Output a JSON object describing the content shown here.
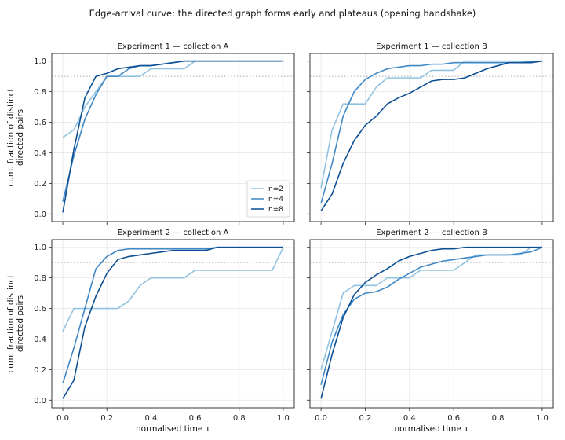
{
  "figure": {
    "title": "Edge-arrival curve: the directed graph forms early and plateaus (opening handshake)"
  },
  "chart_data": [
    {
      "type": "line",
      "title": "Experiment 1 — collection A",
      "xlabel": "",
      "ylabel": "cum. fraction of distinct\ndirected pairs",
      "xlim": [
        -0.05,
        1.05
      ],
      "ylim": [
        -0.05,
        1.05
      ],
      "xticks": [
        "0.0",
        "0.2",
        "0.4",
        "0.6",
        "0.8",
        "1.0"
      ],
      "yticks": [
        "0.0",
        "0.2",
        "0.4",
        "0.6",
        "0.8",
        "1.0"
      ],
      "reference_line": 0.9,
      "grid": true,
      "legend": "lower-right",
      "series": [
        {
          "name": "n=2",
          "color": "#90c2e0",
          "x": [
            0,
            0.05,
            0.1,
            0.15,
            0.2,
            0.25,
            0.3,
            0.35,
            0.4,
            0.45,
            0.5,
            0.55,
            0.6,
            0.65,
            1.0
          ],
          "y": [
            0.5,
            0.55,
            0.7,
            0.8,
            0.9,
            0.9,
            0.9,
            0.9,
            0.95,
            0.95,
            0.95,
            0.95,
            1.0,
            1.0,
            1.0
          ]
        },
        {
          "name": "n=4",
          "color": "#3f88c5",
          "x": [
            0,
            0.05,
            0.1,
            0.15,
            0.2,
            0.25,
            0.3,
            0.35,
            0.4,
            0.45,
            0.5,
            0.55,
            0.6,
            1.0
          ],
          "y": [
            0.08,
            0.38,
            0.62,
            0.78,
            0.9,
            0.9,
            0.95,
            0.97,
            0.97,
            0.98,
            0.99,
            1.0,
            1.0,
            1.0
          ]
        },
        {
          "name": "n=8",
          "color": "#0d4f94",
          "x": [
            0,
            0.05,
            0.1,
            0.15,
            0.2,
            0.25,
            0.3,
            0.35,
            0.4,
            0.45,
            0.5,
            0.55,
            0.6,
            1.0
          ],
          "y": [
            0.01,
            0.42,
            0.76,
            0.9,
            0.92,
            0.95,
            0.96,
            0.97,
            0.97,
            0.98,
            0.99,
            1.0,
            1.0,
            1.0
          ]
        }
      ]
    },
    {
      "type": "line",
      "title": "Experiment 1 — collection B",
      "xlabel": "",
      "ylabel": "",
      "xlim": [
        -0.05,
        1.05
      ],
      "ylim": [
        -0.05,
        1.05
      ],
      "xticks": [
        "0.0",
        "0.2",
        "0.4",
        "0.6",
        "0.8",
        "1.0"
      ],
      "yticks": [
        "0.0",
        "0.2",
        "0.4",
        "0.6",
        "0.8",
        "1.0"
      ],
      "reference_line": 0.9,
      "grid": true,
      "series": [
        {
          "name": "n=2",
          "color": "#90c2e0",
          "x": [
            0,
            0.05,
            0.1,
            0.15,
            0.2,
            0.25,
            0.3,
            0.35,
            0.4,
            0.45,
            0.5,
            0.55,
            0.6,
            0.65,
            0.7,
            0.75,
            0.8,
            0.85,
            0.9,
            0.95,
            1.0
          ],
          "y": [
            0.17,
            0.55,
            0.72,
            0.72,
            0.72,
            0.83,
            0.89,
            0.89,
            0.89,
            0.89,
            0.94,
            0.94,
            0.94,
            1.0,
            1.0,
            1.0,
            1.0,
            1.0,
            1.0,
            1.0,
            1.0
          ]
        },
        {
          "name": "n=4",
          "color": "#3f88c5",
          "x": [
            0,
            0.05,
            0.1,
            0.15,
            0.2,
            0.25,
            0.3,
            0.35,
            0.4,
            0.45,
            0.5,
            0.55,
            0.6,
            0.65,
            0.7,
            0.8,
            0.9,
            1.0
          ],
          "y": [
            0.07,
            0.33,
            0.64,
            0.8,
            0.88,
            0.92,
            0.95,
            0.96,
            0.97,
            0.97,
            0.98,
            0.98,
            0.99,
            0.99,
            0.99,
            0.99,
            0.99,
            1.0
          ]
        },
        {
          "name": "n=8",
          "color": "#0d4f94",
          "x": [
            0,
            0.05,
            0.1,
            0.15,
            0.2,
            0.25,
            0.3,
            0.35,
            0.4,
            0.45,
            0.5,
            0.55,
            0.6,
            0.65,
            0.7,
            0.75,
            0.8,
            0.85,
            0.9,
            0.95,
            1.0
          ],
          "y": [
            0.02,
            0.13,
            0.33,
            0.48,
            0.58,
            0.64,
            0.72,
            0.76,
            0.79,
            0.83,
            0.87,
            0.88,
            0.88,
            0.89,
            0.92,
            0.95,
            0.97,
            0.99,
            0.99,
            0.99,
            1.0
          ]
        }
      ]
    },
    {
      "type": "line",
      "title": "Experiment 2 — collection A",
      "xlabel": "normalised time τ",
      "ylabel": "cum. fraction of distinct\ndirected pairs",
      "xlim": [
        -0.05,
        1.05
      ],
      "ylim": [
        -0.05,
        1.05
      ],
      "xticks": [
        "0.0",
        "0.2",
        "0.4",
        "0.6",
        "0.8",
        "1.0"
      ],
      "yticks": [
        "0.0",
        "0.2",
        "0.4",
        "0.6",
        "0.8",
        "1.0"
      ],
      "reference_line": 0.9,
      "grid": true,
      "series": [
        {
          "name": "n=2",
          "color": "#90c2e0",
          "x": [
            0,
            0.05,
            0.1,
            0.15,
            0.2,
            0.25,
            0.3,
            0.35,
            0.4,
            0.45,
            0.5,
            0.55,
            0.6,
            0.65,
            0.7,
            0.75,
            0.8,
            0.85,
            0.9,
            0.95,
            1.0
          ],
          "y": [
            0.45,
            0.6,
            0.6,
            0.6,
            0.6,
            0.6,
            0.65,
            0.75,
            0.8,
            0.8,
            0.8,
            0.8,
            0.85,
            0.85,
            0.85,
            0.85,
            0.85,
            0.85,
            0.85,
            0.85,
            1.0
          ]
        },
        {
          "name": "n=4",
          "color": "#3f88c5",
          "x": [
            0,
            0.05,
            0.1,
            0.15,
            0.2,
            0.25,
            0.3,
            0.35,
            0.4,
            0.45,
            0.5,
            0.55,
            0.6,
            0.65,
            0.7,
            1.0
          ],
          "y": [
            0.11,
            0.34,
            0.6,
            0.86,
            0.94,
            0.98,
            0.99,
            0.99,
            0.99,
            0.99,
            0.99,
            0.99,
            0.99,
            0.99,
            1.0,
            1.0
          ]
        },
        {
          "name": "n=8",
          "color": "#0d4f94",
          "x": [
            0,
            0.05,
            0.1,
            0.15,
            0.2,
            0.25,
            0.3,
            0.35,
            0.4,
            0.45,
            0.5,
            0.55,
            0.6,
            0.65,
            0.7,
            1.0
          ],
          "y": [
            0.01,
            0.13,
            0.48,
            0.68,
            0.83,
            0.92,
            0.94,
            0.95,
            0.96,
            0.97,
            0.98,
            0.98,
            0.98,
            0.98,
            1.0,
            1.0
          ]
        }
      ]
    },
    {
      "type": "line",
      "title": "Experiment 2 — collection B",
      "xlabel": "normalised time τ",
      "ylabel": "",
      "xlim": [
        -0.05,
        1.05
      ],
      "ylim": [
        -0.05,
        1.05
      ],
      "xticks": [
        "0.0",
        "0.2",
        "0.4",
        "0.6",
        "0.8",
        "1.0"
      ],
      "yticks": [
        "0.0",
        "0.2",
        "0.4",
        "0.6",
        "0.8",
        "1.0"
      ],
      "reference_line": 0.9,
      "grid": true,
      "series": [
        {
          "name": "n=2",
          "color": "#90c2e0",
          "x": [
            0,
            0.05,
            0.1,
            0.15,
            0.2,
            0.25,
            0.3,
            0.35,
            0.4,
            0.45,
            0.5,
            0.55,
            0.6,
            0.65,
            0.7,
            0.75,
            0.8,
            0.85,
            0.9,
            0.95,
            1.0
          ],
          "y": [
            0.2,
            0.45,
            0.7,
            0.75,
            0.75,
            0.75,
            0.8,
            0.8,
            0.8,
            0.85,
            0.85,
            0.85,
            0.85,
            0.9,
            0.95,
            0.95,
            0.95,
            0.95,
            0.95,
            1.0,
            1.0
          ]
        },
        {
          "name": "n=4",
          "color": "#3f88c5",
          "x": [
            0,
            0.05,
            0.1,
            0.15,
            0.2,
            0.25,
            0.3,
            0.35,
            0.4,
            0.45,
            0.5,
            0.55,
            0.6,
            0.65,
            0.7,
            0.75,
            0.8,
            0.85,
            0.9,
            0.95,
            1.0
          ],
          "y": [
            0.1,
            0.38,
            0.56,
            0.66,
            0.7,
            0.71,
            0.74,
            0.79,
            0.83,
            0.87,
            0.89,
            0.91,
            0.92,
            0.93,
            0.94,
            0.95,
            0.95,
            0.95,
            0.96,
            0.97,
            1.0
          ]
        },
        {
          "name": "n=8",
          "color": "#0d4f94",
          "x": [
            0,
            0.05,
            0.1,
            0.15,
            0.2,
            0.25,
            0.3,
            0.35,
            0.4,
            0.45,
            0.5,
            0.55,
            0.6,
            0.65,
            0.7,
            0.75,
            0.8,
            0.85,
            0.9,
            0.95,
            1.0
          ],
          "y": [
            0.01,
            0.3,
            0.54,
            0.69,
            0.77,
            0.82,
            0.86,
            0.91,
            0.94,
            0.96,
            0.98,
            0.99,
            0.99,
            1.0,
            1.0,
            1.0,
            1.0,
            1.0,
            1.0,
            1.0,
            1.0
          ]
        }
      ]
    }
  ]
}
